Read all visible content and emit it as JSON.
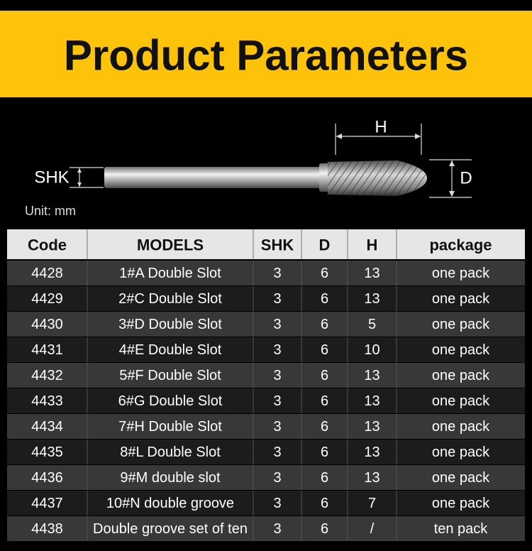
{
  "header": {
    "title": "Product Parameters"
  },
  "diagram": {
    "h_label": "H",
    "shk_label": "SHK",
    "d_label": "D",
    "unit": "Unit: mm"
  },
  "table": {
    "columns": [
      "Code",
      "MODELS",
      "SHK",
      "D",
      "H",
      "package"
    ],
    "rows": [
      [
        "4428",
        "1#A Double Slot",
        "3",
        "6",
        "13",
        "one pack"
      ],
      [
        "4429",
        "2#C Double Slot",
        "3",
        "6",
        "13",
        "one pack"
      ],
      [
        "4430",
        "3#D Double Slot",
        "3",
        "6",
        "5",
        "one pack"
      ],
      [
        "4431",
        "4#E Double Slot",
        "3",
        "6",
        "10",
        "one pack"
      ],
      [
        "4432",
        "5#F Double Slot",
        "3",
        "6",
        "13",
        "one pack"
      ],
      [
        "4433",
        "6#G Double Slot",
        "3",
        "6",
        "13",
        "one pack"
      ],
      [
        "4434",
        "7#H Double Slot",
        "3",
        "6",
        "13",
        "one pack"
      ],
      [
        "4435",
        "8#L Double Slot",
        "3",
        "6",
        "13",
        "one pack"
      ],
      [
        "4436",
        "9#M double slot",
        "3",
        "6",
        "13",
        "one pack"
      ],
      [
        "4437",
        "10#N double groove",
        "3",
        "6",
        "7",
        "one pack"
      ],
      [
        "4438",
        "Double groove set of ten",
        "3",
        "6",
        "/",
        "ten pack"
      ]
    ]
  }
}
